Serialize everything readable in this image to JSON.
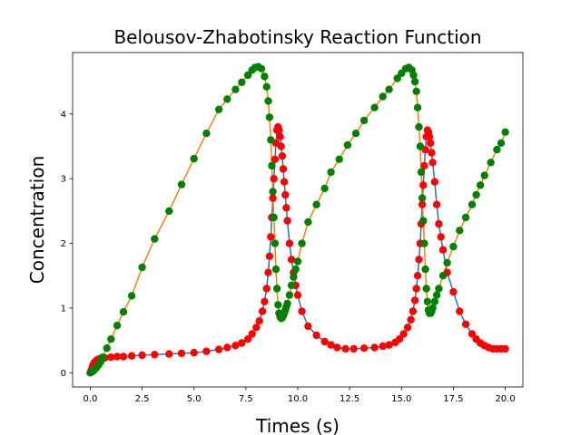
{
  "chart_data": {
    "type": "scatter",
    "title": "Belousov-Zhabotinsky Reaction Function",
    "xlabel": "Times (s)",
    "ylabel": "Concentration",
    "xlim": [
      -0.85,
      20.85
    ],
    "ylim": [
      -0.22,
      4.95
    ],
    "xticks": [
      0.0,
      2.5,
      5.0,
      7.5,
      10.0,
      12.5,
      15.0,
      17.5,
      20.0
    ],
    "xtick_labels": [
      "0.0",
      "2.5",
      "5.0",
      "7.5",
      "10.0",
      "12.5",
      "15.0",
      "17.5",
      "20.0"
    ],
    "yticks": [
      0,
      1,
      2,
      3,
      4
    ],
    "ytick_labels": [
      "0",
      "1",
      "2",
      "3",
      "4"
    ],
    "grid": false,
    "series": [
      {
        "color": "#ff0000",
        "line_color": "#1f77b4",
        "x": [
          0.0,
          0.05,
          0.1,
          0.15,
          0.2,
          0.3,
          0.4,
          0.5,
          0.7,
          1.0,
          1.3,
          1.6,
          2.0,
          2.5,
          3.1,
          3.8,
          4.4,
          5.0,
          5.6,
          6.2,
          6.6,
          7.0,
          7.3,
          7.6,
          7.8,
          8.0,
          8.15,
          8.3,
          8.4,
          8.5,
          8.58,
          8.64,
          8.7,
          8.75,
          8.8,
          8.85,
          8.9,
          8.95,
          9.0,
          9.05,
          9.1,
          9.15,
          9.2,
          9.25,
          9.3,
          9.35,
          9.4,
          9.45,
          9.5,
          9.6,
          9.7,
          9.8,
          9.9,
          10.0,
          10.2,
          10.5,
          10.9,
          11.3,
          11.6,
          11.9,
          12.3,
          12.7,
          13.2,
          13.7,
          14.1,
          14.4,
          14.7,
          14.9,
          15.1,
          15.3,
          15.45,
          15.55,
          15.65,
          15.72,
          15.78,
          15.84,
          15.9,
          15.95,
          16.0,
          16.05,
          16.1,
          16.15,
          16.2,
          16.25,
          16.3,
          16.35,
          16.4,
          16.45,
          16.5,
          16.6,
          16.7,
          16.8,
          16.9,
          17.0,
          17.2,
          17.5,
          17.8,
          18.1,
          18.4,
          18.6,
          18.8,
          19.0,
          19.2,
          19.4,
          19.6,
          19.8,
          20.0
        ],
        "y": [
          0.0,
          0.04,
          0.09,
          0.13,
          0.16,
          0.19,
          0.21,
          0.22,
          0.23,
          0.24,
          0.25,
          0.25,
          0.26,
          0.27,
          0.28,
          0.29,
          0.3,
          0.31,
          0.33,
          0.36,
          0.39,
          0.42,
          0.46,
          0.52,
          0.6,
          0.7,
          0.8,
          0.95,
          1.1,
          1.3,
          1.55,
          1.8,
          2.1,
          2.4,
          2.7,
          3.0,
          3.3,
          3.55,
          3.75,
          3.8,
          3.75,
          3.65,
          3.5,
          3.35,
          3.15,
          2.95,
          2.75,
          2.55,
          2.35,
          2.0,
          1.75,
          1.55,
          1.35,
          1.2,
          0.95,
          0.72,
          0.58,
          0.48,
          0.43,
          0.39,
          0.37,
          0.37,
          0.38,
          0.39,
          0.41,
          0.43,
          0.47,
          0.52,
          0.6,
          0.7,
          0.82,
          0.95,
          1.12,
          1.3,
          1.5,
          1.75,
          2.0,
          2.3,
          2.6,
          2.9,
          3.2,
          3.45,
          3.65,
          3.75,
          3.72,
          3.65,
          3.55,
          3.4,
          3.25,
          2.95,
          2.6,
          2.3,
          2.1,
          1.9,
          1.55,
          1.25,
          0.95,
          0.75,
          0.6,
          0.52,
          0.46,
          0.42,
          0.39,
          0.37,
          0.37,
          0.37,
          0.37
        ]
      },
      {
        "color": "#008000",
        "line_color": "#ff7f0e",
        "x": [
          0.0,
          0.05,
          0.1,
          0.15,
          0.2,
          0.3,
          0.4,
          0.5,
          0.6,
          0.8,
          1.0,
          1.3,
          1.6,
          2.0,
          2.5,
          3.1,
          3.8,
          4.4,
          5.0,
          5.6,
          6.2,
          6.6,
          7.0,
          7.3,
          7.6,
          7.8,
          7.95,
          8.1,
          8.25,
          8.4,
          8.5,
          8.58,
          8.64,
          8.7,
          8.75,
          8.8,
          8.85,
          8.9,
          8.95,
          9.0,
          9.05,
          9.1,
          9.15,
          9.2,
          9.25,
          9.3,
          9.35,
          9.4,
          9.45,
          9.5,
          9.6,
          9.7,
          9.8,
          9.9,
          10.0,
          10.2,
          10.5,
          10.9,
          11.3,
          11.6,
          12.0,
          12.4,
          12.8,
          13.2,
          13.7,
          14.1,
          14.4,
          14.8,
          15.0,
          15.2,
          15.35,
          15.5,
          15.58,
          15.65,
          15.72,
          15.78,
          15.84,
          15.9,
          15.95,
          16.0,
          16.05,
          16.1,
          16.15,
          16.2,
          16.25,
          16.3,
          16.35,
          16.4,
          16.45,
          16.5,
          16.6,
          16.7,
          16.8,
          17.0,
          17.2,
          17.5,
          17.8,
          18.1,
          18.4,
          18.6,
          18.8,
          19.0,
          19.3,
          19.6,
          19.8,
          20.0
        ],
        "y": [
          0.0,
          0.01,
          0.02,
          0.03,
          0.05,
          0.08,
          0.12,
          0.17,
          0.24,
          0.38,
          0.52,
          0.73,
          0.94,
          1.19,
          1.63,
          2.07,
          2.5,
          2.91,
          3.31,
          3.7,
          4.07,
          4.23,
          4.38,
          4.49,
          4.6,
          4.68,
          4.72,
          4.73,
          4.7,
          4.58,
          4.42,
          4.2,
          3.95,
          3.6,
          3.2,
          2.8,
          2.4,
          2.0,
          1.6,
          1.3,
          1.05,
          0.92,
          0.86,
          0.84,
          0.85,
          0.88,
          0.92,
          0.97,
          1.02,
          1.07,
          1.2,
          1.35,
          1.48,
          1.6,
          1.72,
          2.0,
          2.33,
          2.6,
          2.85,
          3.1,
          3.3,
          3.52,
          3.7,
          3.9,
          4.1,
          4.27,
          4.38,
          4.55,
          4.63,
          4.7,
          4.72,
          4.68,
          4.6,
          4.5,
          4.35,
          4.1,
          3.8,
          3.5,
          3.1,
          2.7,
          2.35,
          2.0,
          1.6,
          1.3,
          1.1,
          0.97,
          0.92,
          0.92,
          0.95,
          1.0,
          1.1,
          1.2,
          1.3,
          1.5,
          1.7,
          1.95,
          2.2,
          2.4,
          2.6,
          2.75,
          2.9,
          3.05,
          3.25,
          3.45,
          3.55,
          3.72
        ]
      }
    ]
  }
}
